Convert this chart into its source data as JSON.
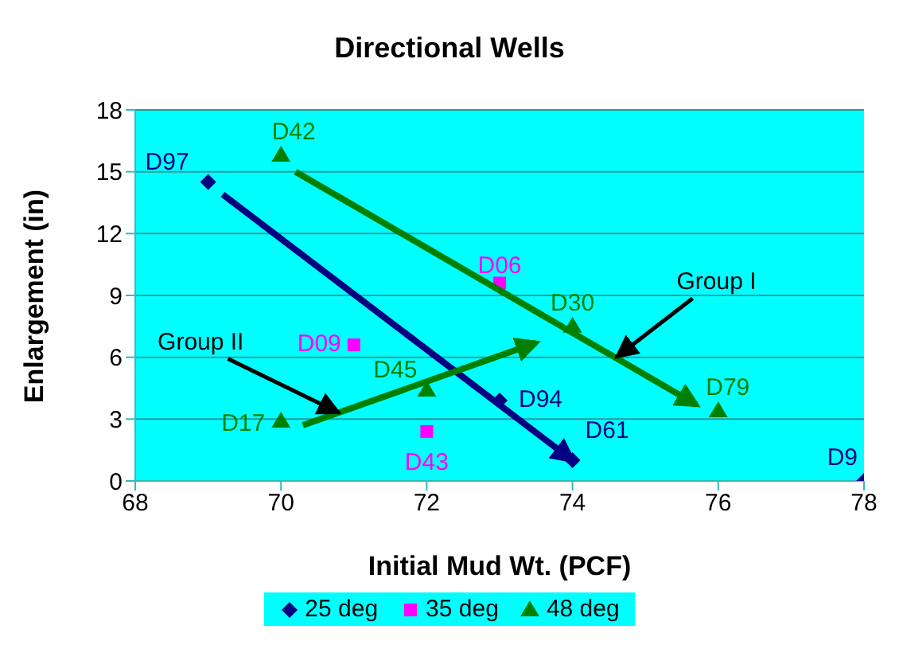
{
  "chart_data": {
    "type": "scatter",
    "title": "Directional Wells",
    "xlabel": "Initial Mud Wt. (PCF)",
    "ylabel": "Enlargement (in)",
    "xlim": [
      68,
      78
    ],
    "xticks": [
      68,
      70,
      72,
      74,
      76,
      78
    ],
    "ylim": [
      0,
      18
    ],
    "yticks": [
      0,
      3,
      6,
      9,
      12,
      15,
      18
    ],
    "grid": "y",
    "legend": "bottom",
    "series": [
      {
        "name": "25 deg",
        "color": "#000080",
        "marker": "diamond",
        "x": [
          69,
          73,
          74,
          78
        ],
        "values": [
          14.5,
          3.9,
          1.0,
          0
        ],
        "value_labels": [
          "D97",
          "D94",
          "D61",
          "D9"
        ]
      },
      {
        "name": "35 deg",
        "color": "#ff00ff",
        "marker": "square",
        "x": [
          73,
          71,
          72
        ],
        "values": [
          9.6,
          6.6,
          2.4
        ],
        "value_labels": [
          "D06",
          "D09",
          "D43"
        ]
      },
      {
        "name": "48 deg",
        "color": "#008000",
        "marker": "triangle",
        "x": [
          70,
          74,
          72,
          70,
          76
        ],
        "values": [
          15.8,
          7.5,
          4.4,
          2.9,
          3.4
        ],
        "value_labels": [
          "D42",
          "D30",
          "D45",
          "D17",
          "D79"
        ]
      },
      {
        "type": "line",
        "color": "#000080",
        "marker": "none",
        "x": [
          69.2,
          74
        ],
        "values": [
          13.9,
          1.0
        ]
      },
      {
        "type": "line",
        "color": "#008000",
        "marker": "none",
        "x": [
          70.2,
          75.7
        ],
        "values": [
          15,
          3.7
        ]
      },
      {
        "type": "line",
        "color": "#008000",
        "marker": "none",
        "x": [
          70.3,
          73.5
        ],
        "values": [
          2.7,
          6.7
        ]
      }
    ],
    "annotations": [
      {
        "text": "Group I",
        "x": 74.6,
        "y": 6
      },
      {
        "text": "Group II",
        "x": 70.8,
        "y": 3.3
      }
    ]
  }
}
